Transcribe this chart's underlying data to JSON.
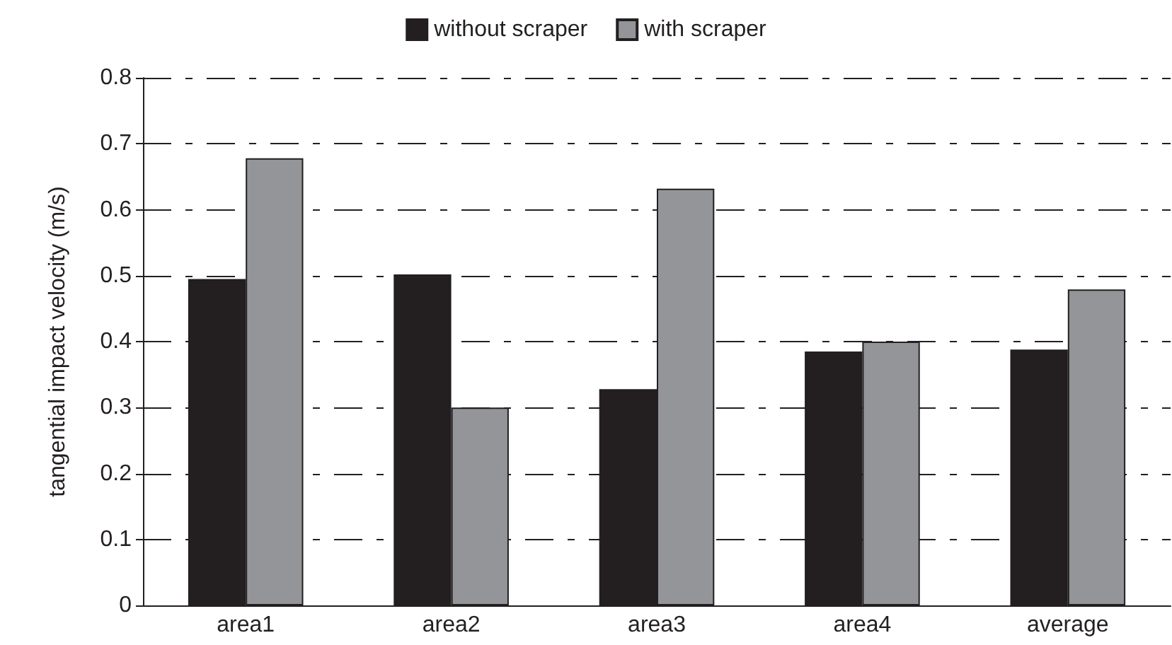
{
  "chart_data": {
    "type": "bar",
    "ylabel": "tangential impact velocity (m/s)",
    "categories": [
      "area1",
      "area2",
      "area3",
      "area4",
      "average"
    ],
    "series": [
      {
        "name": "without scraper",
        "color": "#231f20",
        "values": [
          0.495,
          0.502,
          0.328,
          0.385,
          0.388
        ]
      },
      {
        "name": "with scraper",
        "color": "#939598",
        "values": [
          0.678,
          0.3,
          0.632,
          0.4,
          0.479
        ]
      }
    ],
    "ylim": [
      0,
      0.8
    ],
    "yticks": [
      0,
      0.1,
      0.2,
      0.3,
      0.4,
      0.5,
      0.6,
      0.7,
      0.8
    ],
    "grid": "y",
    "legend": "top"
  }
}
